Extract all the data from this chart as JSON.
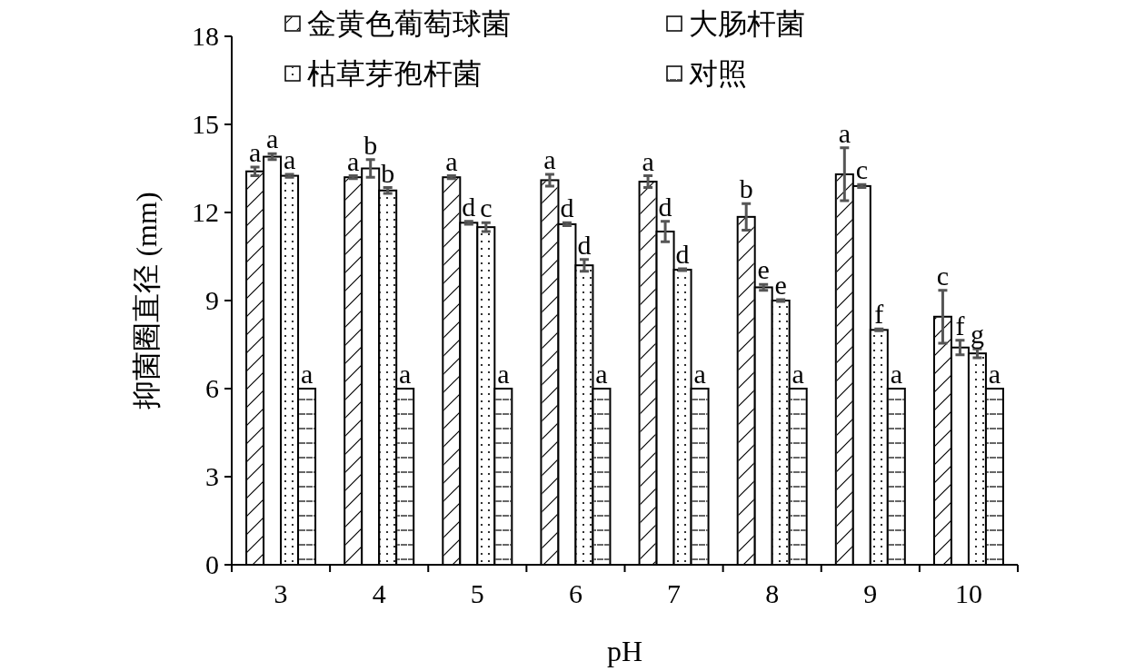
{
  "chart_data": {
    "type": "bar",
    "xlabel": "pH",
    "ylabel": "抑菌圈直径 (mm)",
    "categories": [
      "3",
      "4",
      "5",
      "6",
      "7",
      "8",
      "9",
      "10"
    ],
    "ylim": [
      0,
      18
    ],
    "yticks": [
      0,
      3,
      6,
      9,
      12,
      15,
      18
    ],
    "legend": "top",
    "grid": false,
    "series": [
      {
        "name": "金黄色葡萄球菌",
        "color": "#ffffff",
        "values": [
          13.4,
          13.2,
          13.2,
          13.1,
          13.05,
          11.85,
          13.3,
          8.45
        ],
        "errors": [
          0.15,
          0.05,
          0.05,
          0.2,
          0.2,
          0.45,
          0.9,
          0.9
        ],
        "value_labels": [
          "a",
          "a",
          "a",
          "a",
          "a",
          "b",
          "a",
          "c"
        ]
      },
      {
        "name": "大肠杆菌",
        "color": "#ffffff",
        "values": [
          13.9,
          13.5,
          11.65,
          11.6,
          11.35,
          9.45,
          12.9,
          7.4
        ],
        "errors": [
          0.1,
          0.3,
          0.05,
          0.05,
          0.35,
          0.1,
          0.05,
          0.25
        ],
        "value_labels": [
          "a",
          "b",
          "d",
          "d",
          "d",
          "e",
          "c",
          "f"
        ]
      },
      {
        "name": "枯草芽孢杆菌",
        "color": "#ffffff",
        "values": [
          13.25,
          12.75,
          11.5,
          10.2,
          10.05,
          9.0,
          8.0,
          7.2
        ],
        "errors": [
          0.05,
          0.1,
          0.15,
          0.2,
          0.03,
          0.03,
          0.03,
          0.15
        ],
        "value_labels": [
          "a",
          "b",
          "c",
          "d",
          "d",
          "e",
          "f",
          "g"
        ]
      },
      {
        "name": "对照",
        "color": "#ffffff",
        "values": [
          6,
          6,
          6,
          6,
          6,
          6,
          6,
          6
        ],
        "value_labels": [
          "a",
          "a",
          "a",
          "a",
          "a",
          "a",
          "a",
          "a"
        ]
      }
    ]
  }
}
